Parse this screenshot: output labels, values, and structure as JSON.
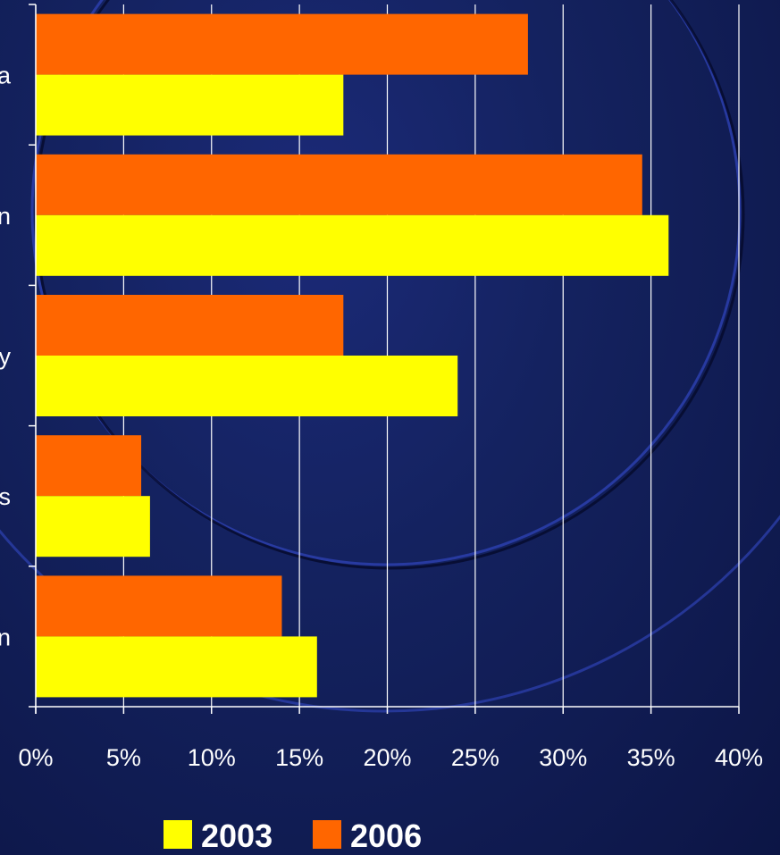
{
  "chart_data": {
    "type": "bar",
    "orientation": "horizontal",
    "categories": [
      "a",
      "n",
      "y",
      "s",
      "n"
    ],
    "series": [
      {
        "name": "2003",
        "color": "#ffff00",
        "values": [
          17.5,
          36,
          24,
          6.5,
          16
        ]
      },
      {
        "name": "2006",
        "color": "#ff6600",
        "values": [
          28,
          34.5,
          17.5,
          6,
          14
        ]
      }
    ],
    "x_ticks": [
      "0%",
      "5%",
      "10%",
      "15%",
      "20%",
      "25%",
      "30%",
      "35%",
      "40%"
    ],
    "xlim": [
      0,
      40
    ],
    "grid": true,
    "legend_position": "bottom"
  }
}
